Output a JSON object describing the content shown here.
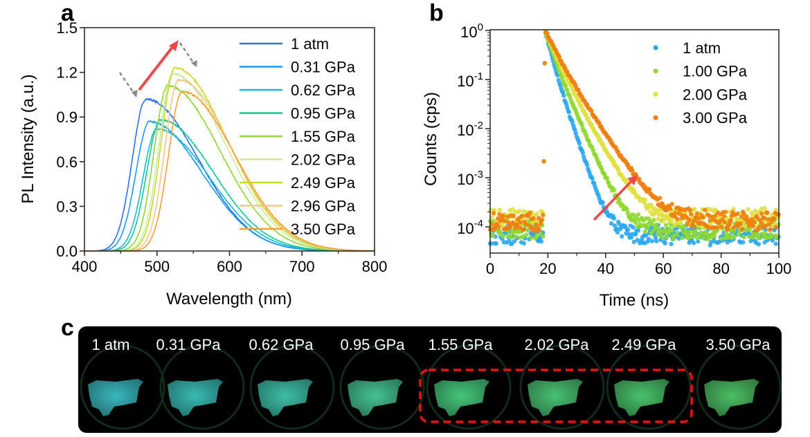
{
  "panel_labels": {
    "a": "a",
    "b": "b",
    "c": "c"
  },
  "chart_data": [
    {
      "type": "line",
      "panel": "a",
      "xlabel": "Wavelength (nm)",
      "ylabel": "PL Intensity (a.u.)",
      "xlim": [
        400,
        800
      ],
      "ylim": [
        0,
        1.5
      ],
      "xticks": [
        "400",
        "500",
        "600",
        "700",
        "800"
      ],
      "yticks": [
        "0.0",
        "0.3",
        "0.6",
        "0.9",
        "1.2",
        "1.5"
      ],
      "grid": false,
      "legend_position": "top-right",
      "series": [
        {
          "name": "1 atm",
          "color": "#2a6ef0",
          "peak_wavelength_nm": 485,
          "peak_intensity": 1.02
        },
        {
          "name": "0.31 GPa",
          "color": "#1a9af0",
          "peak_wavelength_nm": 490,
          "peak_intensity": 0.87
        },
        {
          "name": "0.62 GPa",
          "color": "#1ab8d8",
          "peak_wavelength_nm": 500,
          "peak_intensity": 0.82
        },
        {
          "name": "0.95 GPa",
          "color": "#10c890",
          "peak_wavelength_nm": 505,
          "peak_intensity": 0.88
        },
        {
          "name": "1.55 GPa",
          "color": "#8ed830",
          "peak_wavelength_nm": 515,
          "peak_intensity": 1.11
        },
        {
          "name": "2.02 GPa",
          "color": "#c8ec9c",
          "peak_wavelength_nm": 522,
          "peak_intensity": 1.19
        },
        {
          "name": "2.49 GPa",
          "color": "#c8d820",
          "peak_wavelength_nm": 525,
          "peak_intensity": 1.23
        },
        {
          "name": "2.96 GPa",
          "color": "#f4c488",
          "peak_wavelength_nm": 530,
          "peak_intensity": 1.15
        },
        {
          "name": "3.50 GPa",
          "color": "#f8a030",
          "peak_wavelength_nm": 535,
          "peak_intensity": 1.07
        }
      ],
      "annotations": [
        "red arrow: peak rises then shifts",
        "gray dashed arrows"
      ]
    },
    {
      "type": "scatter",
      "panel": "b",
      "xlabel": "Time (ns)",
      "ylabel": "Counts (cps)",
      "xlim": [
        0,
        100
      ],
      "ylim": [
        3e-05,
        1
      ],
      "yscale": "log",
      "xticks": [
        "0",
        "20",
        "40",
        "60",
        "80",
        "100"
      ],
      "yticks": [
        {
          "base": "10",
          "exp": "0"
        },
        {
          "base": "10",
          "exp": "-1"
        },
        {
          "base": "10",
          "exp": "-2"
        },
        {
          "base": "10",
          "exp": "-3"
        },
        {
          "base": "10",
          "exp": "-4"
        }
      ],
      "grid": false,
      "legend_position": "top-right",
      "pulse_time_ns": 19,
      "series": [
        {
          "name": "1 atm",
          "color": "#2aa8f0",
          "decay_time_ns": 2.3,
          "background_cps": 7e-05
        },
        {
          "name": "1.00 GPa",
          "color": "#90d830",
          "decay_time_ns": 3.0,
          "background_cps": 9e-05
        },
        {
          "name": "2.00 GPa",
          "color": "#e0e040",
          "decay_time_ns": 3.8,
          "background_cps": 0.00015
        },
        {
          "name": "3.00 GPa",
          "color": "#f08010",
          "decay_time_ns": 4.5,
          "background_cps": 0.00013
        }
      ]
    }
  ],
  "photos": {
    "labels": [
      "1 atm",
      "0.31 GPa",
      "0.62 GPa",
      "0.95 GPa",
      "1.55 GPa",
      "2.02 GPa",
      "2.49 GPa",
      "3.50 GPa"
    ],
    "colors": [
      "#3cc0c8",
      "#3cc4bc",
      "#40c8b0",
      "#48cc98",
      "#48d080",
      "#4ccc78",
      "#4ccc70",
      "#50c868"
    ],
    "highlight_color": "#ee1111"
  }
}
